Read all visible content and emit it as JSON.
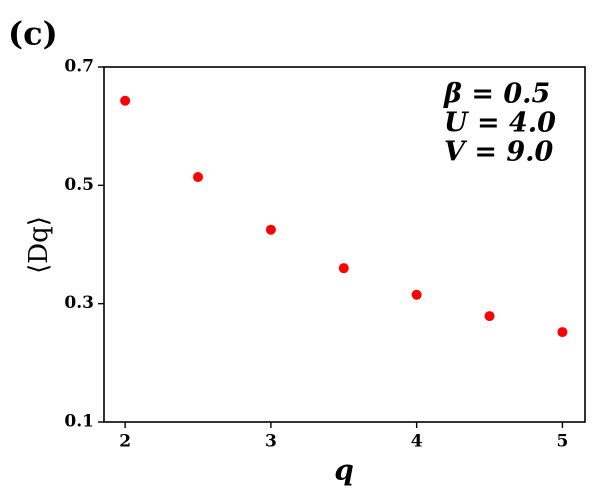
{
  "chart_data": {
    "type": "scatter",
    "panel_label": "(c)",
    "xlabel": "q",
    "ylabel": "⟨Dq⟩",
    "annotations": [
      "β = 0.5",
      "U = 4.0",
      "V = 9.0"
    ],
    "x": [
      2,
      2.5,
      3,
      3.5,
      4,
      4.5,
      5
    ],
    "values": [
      0.643,
      0.514,
      0.425,
      0.36,
      0.315,
      0.279,
      0.252
    ],
    "color": "#ff0000",
    "xlim": [
      1.855,
      5.155
    ],
    "xticks": [
      2,
      3,
      4,
      5
    ],
    "ylim": [
      0.1,
      0.7
    ],
    "yticks": [
      0.1,
      0.3,
      0.5,
      0.7
    ]
  }
}
